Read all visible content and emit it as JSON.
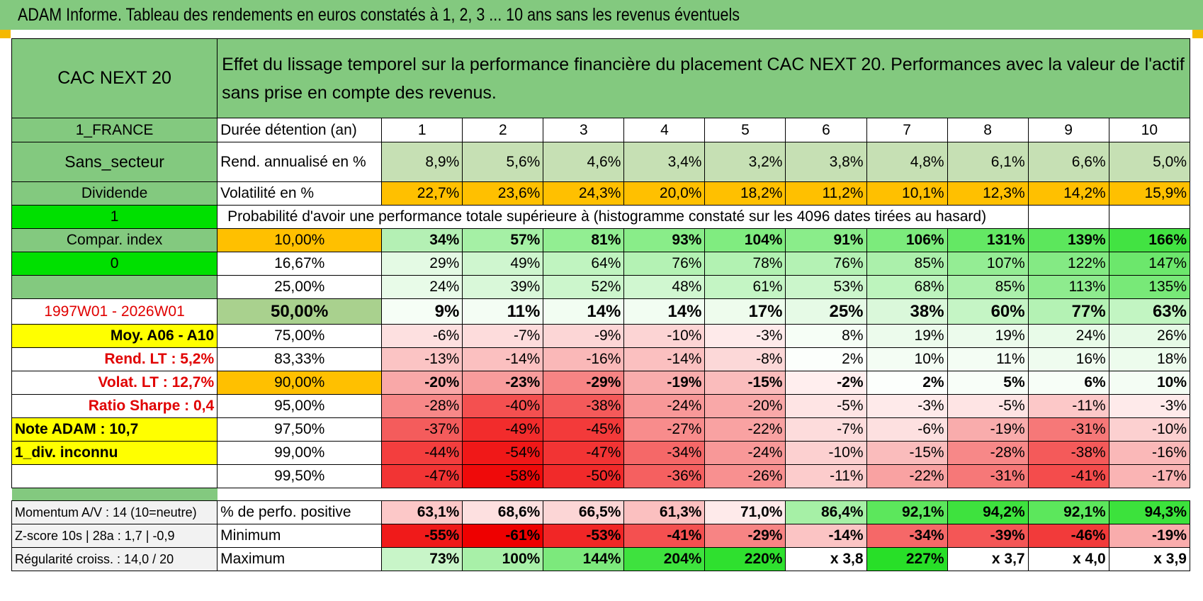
{
  "title": "ADAM Informe. Tableau des rendements en euros constatés à 1, 2, 3 ... 10 ans sans les revenus éventuels",
  "colors": {
    "header_green": "#83c97f",
    "light_green": "#c6e0b4",
    "orange": "#ffc000",
    "bright_green": "#00e000",
    "yellow": "#ffff00",
    "red_text": "#e00000"
  },
  "header": {
    "fund": "CAC NEXT 20",
    "description": "Effet du lissage temporel sur la performance financière du placement CAC NEXT 20. Performances avec la valeur de l'actif sans prise en compte des revenus."
  },
  "left_labels": {
    "country": "1_FRANCE",
    "sector": "Sans_secteur",
    "dividend": "Dividende",
    "flag1": "1",
    "compar": "Compar. index",
    "flag0": "0",
    "blank": "",
    "period": "1997W01 - 2026W01",
    "moy": "Moy. A06 - A10",
    "rend_lt": "Rend. LT :    5,2%",
    "volat_lt": "Volat. LT :    12,7%",
    "sharpe": "Ratio Sharpe :    0,4",
    "note": "Note ADAM : 10,7",
    "div": "1_div. inconnu",
    "momentum": "Momentum A/V : 14 (10=neutre)",
    "zscore": "Z-score 10s | 28a : 1,7 | -0,9",
    "regularite": "Régularité croiss. : 14,0 / 20"
  },
  "row_labels": {
    "duree": "Durée détention (an)",
    "rend": "Rend. annualisé en %",
    "vol": "Volatilité en %",
    "proba": "Probabilité d'avoir une performance totale supérieure à (histogramme constaté sur les 4096 dates tirées au hasard)",
    "perf_pos": "% de perfo. positive",
    "minimum": "Minimum",
    "maximum": "Maximum"
  },
  "years": [
    "1",
    "2",
    "3",
    "4",
    "5",
    "6",
    "7",
    "8",
    "9",
    "10"
  ],
  "rend": [
    "8,9%",
    "5,6%",
    "4,6%",
    "3,4%",
    "3,2%",
    "3,8%",
    "4,8%",
    "6,1%",
    "6,6%",
    "5,0%"
  ],
  "vol": [
    "22,7%",
    "23,6%",
    "24,3%",
    "20,0%",
    "18,2%",
    "11,2%",
    "10,1%",
    "12,3%",
    "14,2%",
    "15,9%"
  ],
  "prob_rows": [
    {
      "p": "10,00%",
      "v": [
        "34%",
        "57%",
        "81%",
        "93%",
        "104%",
        "91%",
        "106%",
        "131%",
        "139%",
        "166%"
      ],
      "bg": [
        "#b4f0b4",
        "#a5f0a5",
        "#92ee92",
        "#89ed89",
        "#80ec80",
        "#8aed8a",
        "#7ceb7c",
        "#64e864",
        "#5ce75c",
        "#42e342"
      ]
    },
    {
      "p": "16,67%",
      "v": [
        "29%",
        "49%",
        "64%",
        "76%",
        "78%",
        "76%",
        "85%",
        "107%",
        "122%",
        "147%"
      ],
      "bg": [
        "#e4fae4",
        "#cff6cf",
        "#c0f4c0",
        "#b4f2b4",
        "#b2f2b2",
        "#b4f2b4",
        "#abf0ab",
        "#94ed94",
        "#84ea84",
        "#6ce76c"
      ]
    },
    {
      "p": "25,00%",
      "v": [
        "24%",
        "39%",
        "52%",
        "48%",
        "61%",
        "53%",
        "68%",
        "85%",
        "113%",
        "135%"
      ],
      "bg": [
        "#e8fbe8",
        "#d9f8d9",
        "#ccf6cc",
        "#d0f7d0",
        "#c4f5c4",
        "#cbf6cb",
        "#bdf4bd",
        "#abf0ab",
        "#8eeb8e",
        "#78e978"
      ]
    },
    {
      "p": "50,00%",
      "v": [
        "9%",
        "11%",
        "14%",
        "14%",
        "17%",
        "25%",
        "38%",
        "60%",
        "77%",
        "63%"
      ],
      "bg": [
        "#f6fef6",
        "#f4fdf4",
        "#f2fdf2",
        "#f2fdf2",
        "#eefced",
        "#e6fae6",
        "#daf8da",
        "#c5f5c5",
        "#b4f2b4",
        "#c2f5c2"
      ]
    },
    {
      "p": "75,00%",
      "v": [
        "-6%",
        "-7%",
        "-9%",
        "-10%",
        "-3%",
        "8%",
        "19%",
        "19%",
        "24%",
        "26%"
      ],
      "bg": [
        "#fde0e0",
        "#fddcdc",
        "#fcd6d6",
        "#fcd4d4",
        "#feeaea",
        "#f6fef6",
        "#ecfbec",
        "#ecfbec",
        "#e8fbe8",
        "#e6fae6"
      ]
    },
    {
      "p": "83,33%",
      "v": [
        "-13%",
        "-14%",
        "-16%",
        "-14%",
        "-8%",
        "2%",
        "10%",
        "11%",
        "16%",
        "18%"
      ],
      "bg": [
        "#fbc4c4",
        "#fbc0c0",
        "#fab8b8",
        "#fbc0c0",
        "#fcd8d8",
        "#fcfffc",
        "#f4fdf4",
        "#f4fdf4",
        "#effcef",
        "#edfced"
      ]
    },
    {
      "p": "90,00%",
      "v": [
        "-20%",
        "-23%",
        "-29%",
        "-19%",
        "-15%",
        "-2%",
        "2%",
        "5%",
        "6%",
        "10%"
      ],
      "bg": [
        "#f9a8a8",
        "#f89c9c",
        "#f78484",
        "#f9acac",
        "#fabcbc",
        "#ffeeee",
        "#fcfffc",
        "#f8fef8",
        "#f7fef7",
        "#f4fdf4"
      ]
    },
    {
      "p": "95,00%",
      "v": [
        "-28%",
        "-40%",
        "-38%",
        "-24%",
        "-20%",
        "-5%",
        "-3%",
        "-5%",
        "-11%",
        "-3%"
      ],
      "bg": [
        "#f78888",
        "#f45050",
        "#f45a5a",
        "#f89898",
        "#f9a8a8",
        "#fee4e4",
        "#feeaea",
        "#fee4e4",
        "#fcc8c8",
        "#feeaea"
      ]
    },
    {
      "p": "97,50%",
      "v": [
        "-37%",
        "-49%",
        "-45%",
        "-27%",
        "-22%",
        "-7%",
        "-6%",
        "-19%",
        "-31%",
        "-10%"
      ],
      "bg": [
        "#f45c5c",
        "#f22c2c",
        "#f33a3a",
        "#f88c8c",
        "#f9a2a2",
        "#fddcdc",
        "#fde0e0",
        "#f9acac",
        "#f67878",
        "#fcd0d0"
      ]
    },
    {
      "p": "99,00%",
      "v": [
        "-44%",
        "-54%",
        "-47%",
        "-34%",
        "-24%",
        "-10%",
        "-15%",
        "-28%",
        "-38%",
        "-16%"
      ],
      "bg": [
        "#f33e3e",
        "#f01818",
        "#f23434",
        "#f56868",
        "#f89898",
        "#fcd0d0",
        "#fabcbc",
        "#f78888",
        "#f45a5a",
        "#fab8b8"
      ]
    },
    {
      "p": "99,50%",
      "v": [
        "-47%",
        "-58%",
        "-50%",
        "-36%",
        "-26%",
        "-11%",
        "-22%",
        "-31%",
        "-41%",
        "-17%"
      ],
      "bg": [
        "#f23434",
        "#ef0a0a",
        "#f12a2a",
        "#f56060",
        "#f89090",
        "#fccccc",
        "#f9a2a2",
        "#f67878",
        "#f44c4c",
        "#fab4b4"
      ]
    }
  ],
  "perf_pos": [
    "63,1%",
    "68,6%",
    "66,5%",
    "61,3%",
    "71,0%",
    "86,4%",
    "92,1%",
    "94,2%",
    "92,1%",
    "94,3%"
  ],
  "perf_pos_bg": [
    "#fcc8c8",
    "#fde0e0",
    "#fcd6d6",
    "#fbc0c0",
    "#feeaea",
    "#a6f0a6",
    "#5ce75c",
    "#3ee23e",
    "#5ce75c",
    "#3ce23c"
  ],
  "minimum": [
    "-55%",
    "-61%",
    "-53%",
    "-41%",
    "-29%",
    "-14%",
    "-34%",
    "-39%",
    "-46%",
    "-19%"
  ],
  "minimum_bg": [
    "#f01a1a",
    "#ee0000",
    "#f12626",
    "#f45050",
    "#f78484",
    "#fbc4c4",
    "#f56868",
    "#f45656",
    "#f23a3a",
    "#f9acac"
  ],
  "maximum": [
    "73%",
    "100%",
    "144%",
    "204%",
    "220%",
    "x 3,8",
    "227%",
    "x 3,7",
    "x 4,0",
    "x 3,9"
  ],
  "maximum_bg": [
    "#c8f5c8",
    "#a8f0a8",
    "#7ce97c",
    "#3ee23e",
    "#2fe02f",
    "#ffffff",
    "#28df28",
    "#ffffff",
    "#ffffff",
    "#ffffff"
  ]
}
